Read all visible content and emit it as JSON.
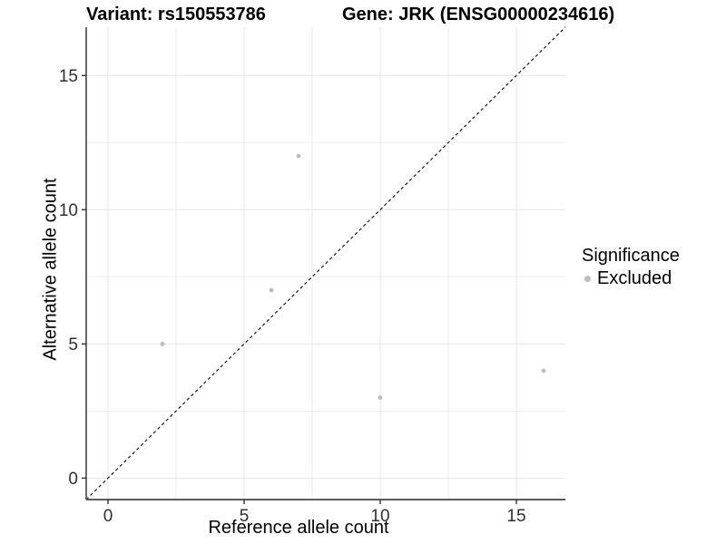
{
  "header": {
    "title_left": "Variant: rs150553786",
    "title_right": "Gene: JRK (ENSG00000234616)"
  },
  "chart_data": {
    "type": "scatter",
    "title_left": "Variant: rs150553786",
    "title_right": "Gene: JRK (ENSG00000234616)",
    "xlabel": "Reference allele count",
    "ylabel": "Alternative allele count",
    "xlim": [
      -0.8,
      16.8
    ],
    "ylim": [
      -0.8,
      16.8
    ],
    "xticks": [
      0,
      5,
      10,
      15
    ],
    "yticks": [
      0,
      5,
      10,
      15
    ],
    "x_minor": [
      2.5,
      7.5,
      12.5
    ],
    "y_minor": [
      2.5,
      7.5,
      12.5
    ],
    "grid": true,
    "legend_position": "right",
    "series": [
      {
        "name": "Excluded",
        "color": "#bdbdbd",
        "points": [
          [
            2,
            5
          ],
          [
            6,
            7
          ],
          [
            7,
            12
          ],
          [
            10,
            3
          ],
          [
            16,
            4
          ]
        ]
      }
    ],
    "reference_line": {
      "slope": 1,
      "intercept": 0,
      "linetype": "dashed",
      "color": "#1a1a1a",
      "meaning": "identity line y = x"
    },
    "legend": {
      "title": "Significance",
      "entries": [
        {
          "label": "Excluded",
          "color": "#bdbdbd"
        }
      ]
    },
    "colors": {
      "point": "#bdbdbd",
      "major_grid": "#e4e4e4",
      "minor_grid": "#ededed",
      "axis_line": "#444444",
      "tick_mark": "#333333",
      "tick_label": "#303030",
      "panel_background": "#ffffff"
    }
  }
}
